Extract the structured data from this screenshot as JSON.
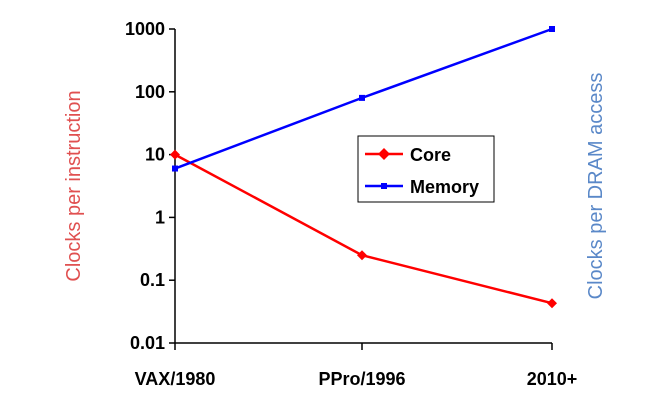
{
  "chart_data": {
    "type": "line",
    "y_scale": "log",
    "ylim": [
      0.01,
      1000
    ],
    "y_ticks": [
      "1000",
      "100",
      "10",
      "1",
      "0.1",
      "0.01"
    ],
    "y_tick_values": [
      1000,
      100,
      10,
      1,
      0.1,
      0.01
    ],
    "categories": [
      "VAX/1980",
      "PPro/1996",
      "2010+"
    ],
    "ylabel_left": "Clocks per instruction",
    "ylabel_right": "Clocks per DRAM access",
    "grid": false,
    "legend_position": "center-right",
    "series": [
      {
        "name": "Core",
        "values": [
          10,
          0.25,
          0.043
        ],
        "color": "#ff0000",
        "marker": "diamond"
      },
      {
        "name": "Memory",
        "values": [
          6,
          80,
          1000
        ],
        "color": "#0000ff",
        "marker": "square"
      }
    ],
    "colors": {
      "left_axis_title": "#e05050",
      "right_axis_title": "#5a88c8",
      "axis": "#000000"
    }
  }
}
